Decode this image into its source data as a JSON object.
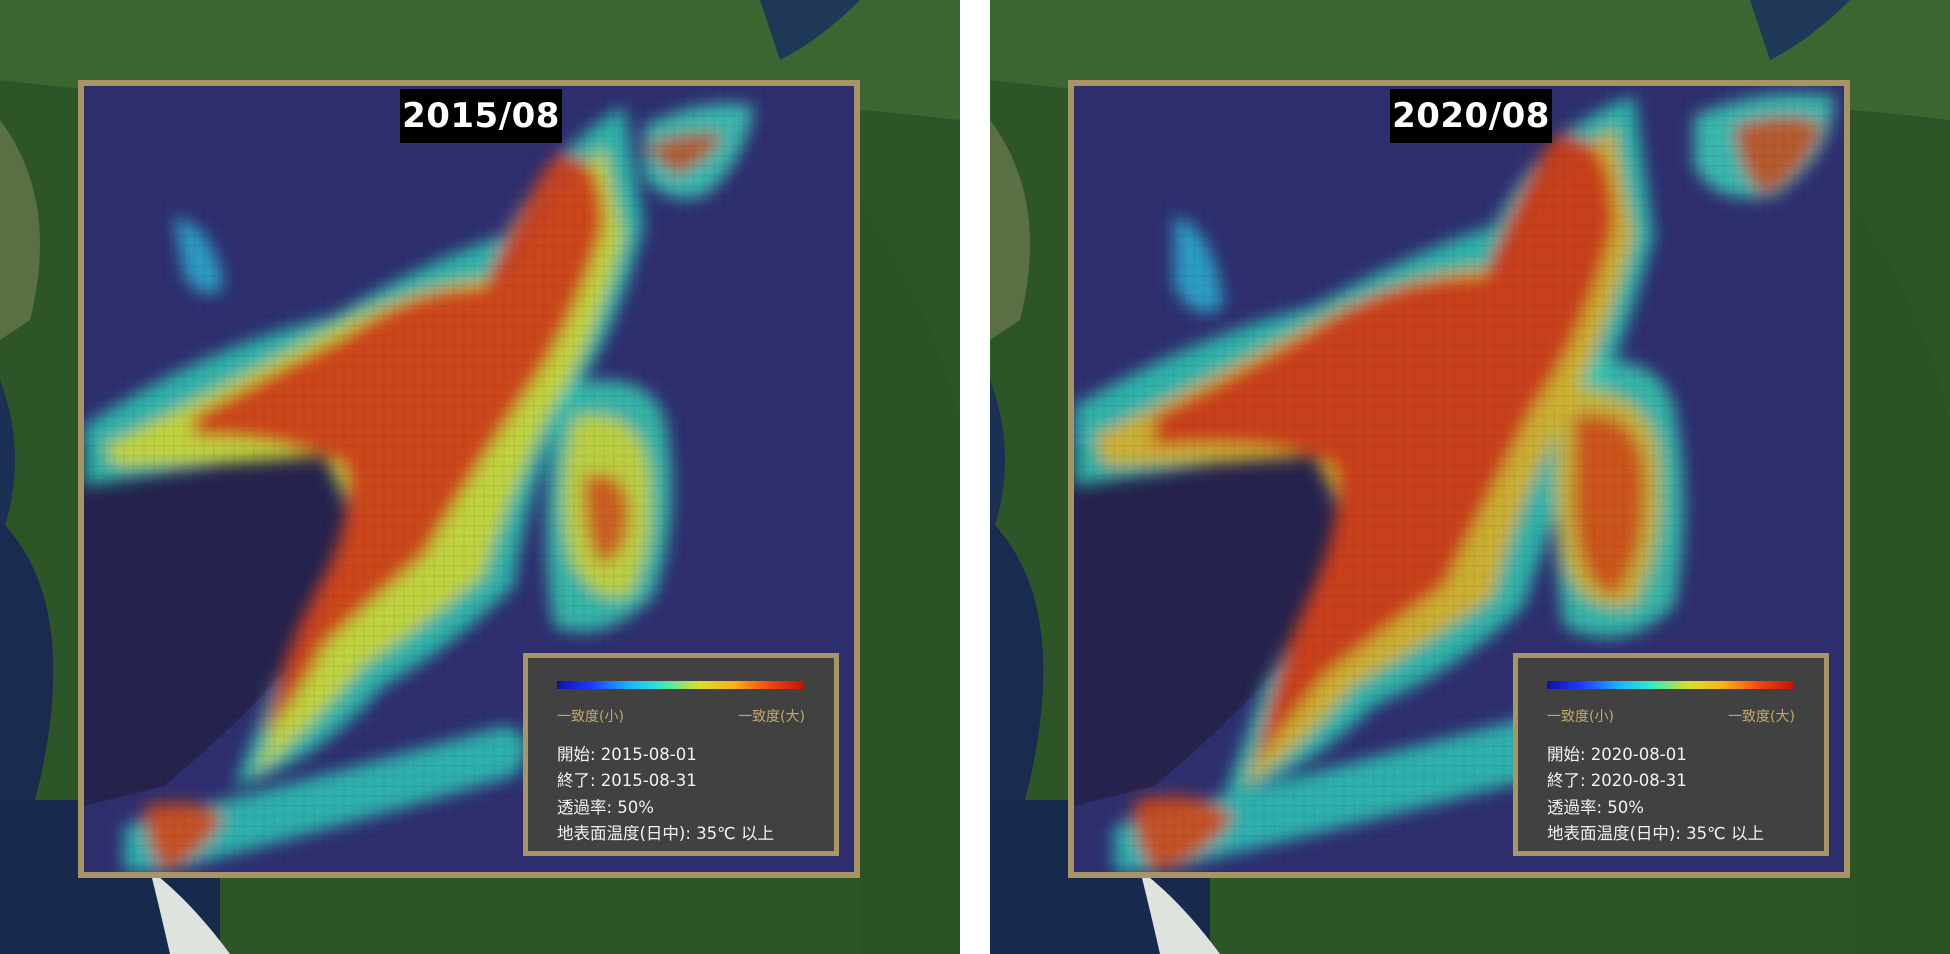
{
  "panels": [
    {
      "period_label": "2015/08",
      "legend": {
        "min_label": "一致度(小)",
        "max_label": "一致度(大)",
        "start": "開始: 2015-08-01",
        "end": "終了: 2015-08-31",
        "opacity": "透過率: 50%",
        "temperature": "地表面温度(日中): 35℃ 以上"
      }
    },
    {
      "period_label": "2020/08",
      "legend": {
        "min_label": "一致度(小)",
        "max_label": "一致度(大)",
        "start": "開始: 2020-08-01",
        "end": "終了: 2020-08-31",
        "opacity": "透過率: 50%",
        "temperature": "地表面温度(日中): 35℃ 以上"
      }
    }
  ],
  "colors": {
    "frame": "#a89464",
    "overlay_low": "#2a2a88",
    "overlay_mid": "#2fcfb0",
    "overlay_high": "#cc3e1a",
    "sea": "#1a2a52",
    "forest": "#2f5a2a"
  }
}
